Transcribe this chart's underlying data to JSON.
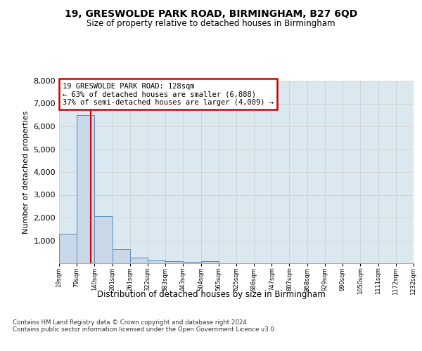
{
  "title": "19, GRESWOLDE PARK ROAD, BIRMINGHAM, B27 6QD",
  "subtitle": "Size of property relative to detached houses in Birmingham",
  "xlabel": "Distribution of detached houses by size in Birmingham",
  "ylabel": "Number of detached properties",
  "bin_edges": [
    19,
    79,
    140,
    201,
    261,
    322,
    383,
    443,
    504,
    565,
    625,
    686,
    747,
    807,
    868,
    929,
    990,
    1050,
    1111,
    1172,
    1232
  ],
  "bar_heights": [
    1300,
    6500,
    2050,
    620,
    255,
    130,
    100,
    70,
    80,
    0,
    0,
    0,
    0,
    0,
    0,
    0,
    0,
    0,
    0,
    0
  ],
  "bar_color": "#c8d8e8",
  "bar_edge_color": "#5b8db8",
  "grid_color": "#cccccc",
  "bg_color": "#dce8f0",
  "property_line_x": 128,
  "annotation_text": "19 GRESWOLDE PARK ROAD: 128sqm\n← 63% of detached houses are smaller (6,888)\n37% of semi-detached houses are larger (4,009) →",
  "annotation_box_color": "#cc0000",
  "footer_text": "Contains HM Land Registry data © Crown copyright and database right 2024.\nContains public sector information licensed under the Open Government Licence v3.0.",
  "ylim": [
    0,
    8000
  ],
  "yticks": [
    0,
    1000,
    2000,
    3000,
    4000,
    5000,
    6000,
    7000,
    8000
  ]
}
